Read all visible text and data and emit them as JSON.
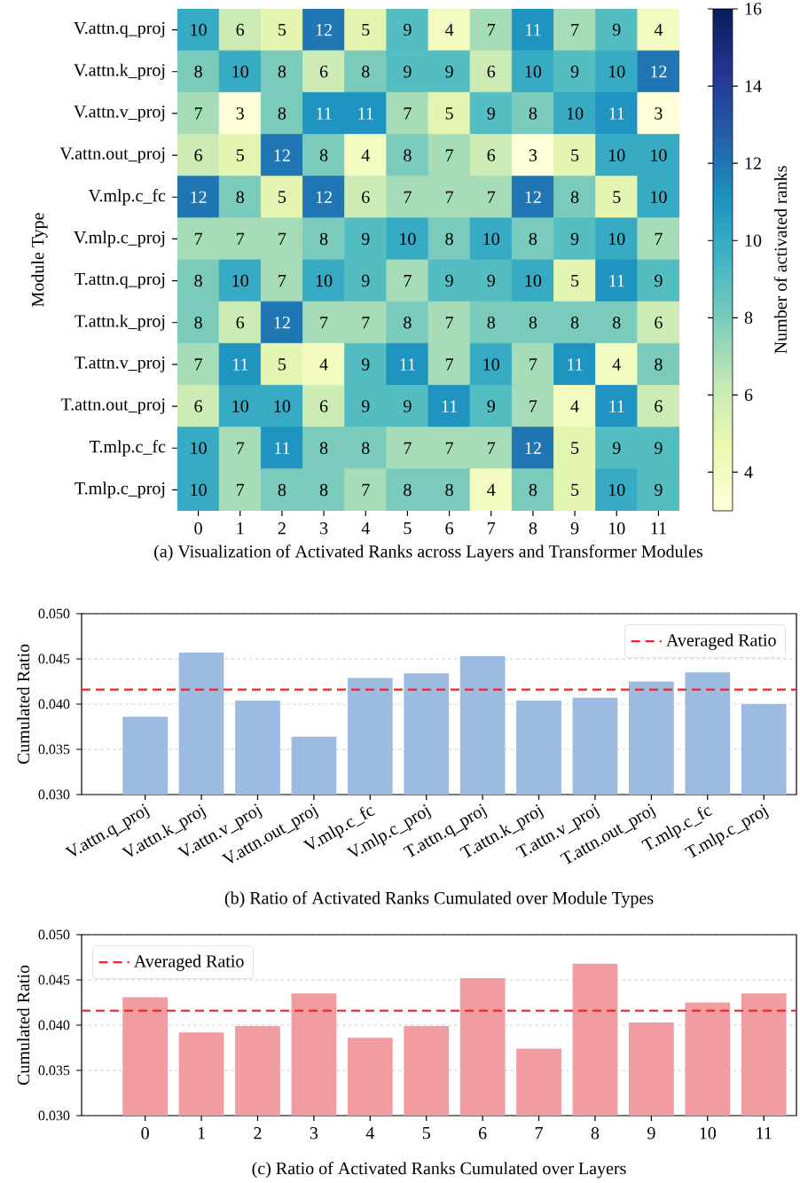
{
  "chart_data": [
    {
      "type": "heatmap",
      "xlabel": "(a) Visualization of Activated Ranks across Layers and Transformer Modules",
      "ylabel": "Module Type",
      "clabel": "Number of activated ranks",
      "categories": [
        "0",
        "1",
        "2",
        "3",
        "4",
        "5",
        "6",
        "7",
        "8",
        "9",
        "10",
        "11"
      ],
      "y_categories": [
        "V.attn.q_proj",
        "V.attn.k_proj",
        "V.attn.v_proj",
        "V.attn.out_proj",
        "V.mlp.c_fc",
        "V.mlp.c_proj",
        "T.attn.q_proj",
        "T.attn.k_proj",
        "T.attn.v_proj",
        "T.attn.out_proj",
        "T.mlp.c_fc",
        "T.mlp.c_proj"
      ],
      "cells": [
        [
          10,
          6,
          5,
          12,
          5,
          9,
          4,
          7,
          11,
          7,
          9,
          4
        ],
        [
          8,
          10,
          8,
          6,
          8,
          9,
          9,
          6,
          10,
          9,
          10,
          12
        ],
        [
          7,
          3,
          8,
          11,
          11,
          7,
          5,
          9,
          8,
          10,
          11,
          3
        ],
        [
          6,
          5,
          12,
          8,
          4,
          8,
          7,
          6,
          3,
          5,
          10,
          10
        ],
        [
          12,
          8,
          5,
          12,
          6,
          7,
          7,
          7,
          12,
          8,
          5,
          10
        ],
        [
          7,
          7,
          7,
          8,
          9,
          10,
          8,
          10,
          8,
          9,
          10,
          7
        ],
        [
          8,
          10,
          7,
          10,
          9,
          7,
          9,
          9,
          10,
          5,
          11,
          9
        ],
        [
          8,
          6,
          12,
          7,
          7,
          8,
          7,
          8,
          8,
          8,
          8,
          6
        ],
        [
          7,
          11,
          5,
          4,
          9,
          11,
          7,
          10,
          7,
          11,
          4,
          8
        ],
        [
          6,
          10,
          10,
          6,
          9,
          9,
          11,
          9,
          7,
          4,
          11,
          6
        ],
        [
          10,
          7,
          11,
          8,
          8,
          7,
          7,
          7,
          12,
          5,
          9,
          9
        ],
        [
          10,
          7,
          8,
          8,
          7,
          8,
          8,
          4,
          8,
          5,
          10,
          9
        ]
      ],
      "data_labels": true,
      "clim": [
        3,
        16
      ],
      "cticks": [
        4,
        6,
        8,
        10,
        12,
        14,
        16
      ]
    },
    {
      "type": "bar",
      "xlabel": "(b) Ratio of Activated Ranks Cumulated over Module Types",
      "ylabel": "Cumulated Ratio",
      "categories": [
        "V.attn.q_proj",
        "V.attn.k_proj",
        "V.attn.v_proj",
        "V.attn.out_proj",
        "V.mlp.c_fc",
        "V.mlp.c_proj",
        "T.attn.q_proj",
        "T.attn.k_proj",
        "T.attn.v_proj",
        "T.attn.out_proj",
        "T.mlp.c_fc",
        "T.mlp.c_proj"
      ],
      "values": [
        0.0386,
        0.0457,
        0.0404,
        0.0364,
        0.0429,
        0.0434,
        0.0453,
        0.0404,
        0.0407,
        0.0425,
        0.0435,
        0.04
      ],
      "color": "#9dbbe0",
      "ylim": [
        0.03,
        0.05
      ],
      "yticks": [
        {
          "value": 0.03,
          "label": "0.030"
        },
        {
          "value": 0.035,
          "label": "0.035"
        },
        {
          "value": 0.04,
          "label": "0.040"
        },
        {
          "value": 0.045,
          "label": "0.045"
        },
        {
          "value": 0.05,
          "label": "0.050"
        }
      ],
      "ref_lines": [
        {
          "axis": "y",
          "value": 0.0416,
          "label": "Averaged Ratio",
          "color": "#e8262b",
          "line_style": "dashed"
        }
      ],
      "grid": "y",
      "legend": "top right"
    },
    {
      "type": "bar",
      "xlabel": "(c) Ratio of Activated Ranks Cumulated over Layers",
      "ylabel": "Cumulated Ratio",
      "categories": [
        "0",
        "1",
        "2",
        "3",
        "4",
        "5",
        "6",
        "7",
        "8",
        "9",
        "10",
        "11"
      ],
      "values": [
        0.0431,
        0.0392,
        0.0399,
        0.0435,
        0.0386,
        0.0399,
        0.0452,
        0.0374,
        0.0468,
        0.0403,
        0.0425,
        0.0435
      ],
      "color": "#f09ca0",
      "ylim": [
        0.03,
        0.05
      ],
      "yticks": [
        {
          "value": 0.03,
          "label": "0.030"
        },
        {
          "value": 0.035,
          "label": "0.035"
        },
        {
          "value": 0.04,
          "label": "0.040"
        },
        {
          "value": 0.045,
          "label": "0.045"
        },
        {
          "value": 0.05,
          "label": "0.050"
        }
      ],
      "ref_lines": [
        {
          "axis": "y",
          "value": 0.0416,
          "label": "Averaged Ratio",
          "color": "#e8262b",
          "line_style": "dashed"
        }
      ],
      "grid": "y",
      "legend": "top left"
    }
  ]
}
